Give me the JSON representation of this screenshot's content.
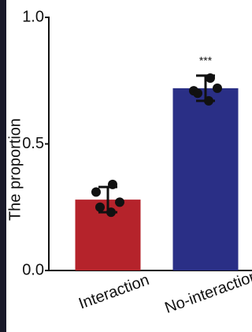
{
  "chart_data": {
    "type": "bar",
    "y_label": "The proportion",
    "categories": [
      "Interaction",
      "No-interaction"
    ],
    "values": [
      0.28,
      0.72
    ],
    "errors": [
      0.05,
      0.05
    ],
    "points": [
      [
        0.34,
        0.31,
        0.27,
        0.25,
        0.23
      ],
      [
        0.76,
        0.71,
        0.72,
        0.7,
        0.67
      ]
    ],
    "colors": [
      "#b5232b",
      "#2a2f86"
    ],
    "annotation": "***",
    "ylim": [
      0,
      1
    ],
    "yticks": [
      {
        "value": 0,
        "label": "0.0"
      },
      0.5,
      {
        "value": 1,
        "label": "1.0"
      }
    ]
  }
}
